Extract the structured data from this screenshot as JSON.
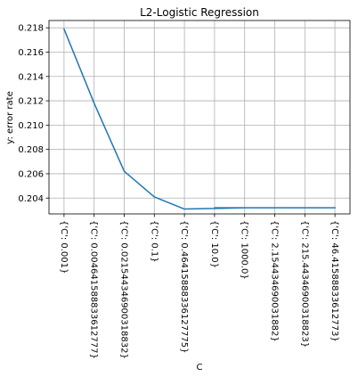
{
  "chart_data": {
    "type": "line",
    "title": "L2-Logistic Regression",
    "xlabel": "C",
    "ylabel": "y: error rate",
    "categories": [
      "{'C': 0.001}",
      "{'C': 0.004641588833612777}",
      "{'C': 0.021544346900318832}",
      "{'C': 0.1}",
      "{'C': 0.46415888336127775}",
      "{'C': 10.0}",
      "{'C': 1000.0}",
      "{'C': 2.154434690031882}",
      "{'C': 215.44346900318823}",
      "{'C': 46.41588833612773}"
    ],
    "y_ticks": [
      "0.204",
      "0.206",
      "0.208",
      "0.210",
      "0.212",
      "0.214",
      "0.216",
      "0.218"
    ],
    "ylim": [
      0.2027,
      0.2186
    ],
    "grid": true,
    "line_color": "#1f77b4",
    "series": [
      {
        "x": [
          0.5,
          1.5,
          2.5,
          3.5,
          4.5,
          6.5,
          8.5,
          7.5,
          5.5,
          9.5
        ],
        "y": [
          0.2179,
          0.2118,
          0.2062,
          0.2041,
          0.2031,
          0.2032,
          0.2032,
          0.2032,
          0.2032,
          0.2032
        ]
      }
    ]
  }
}
